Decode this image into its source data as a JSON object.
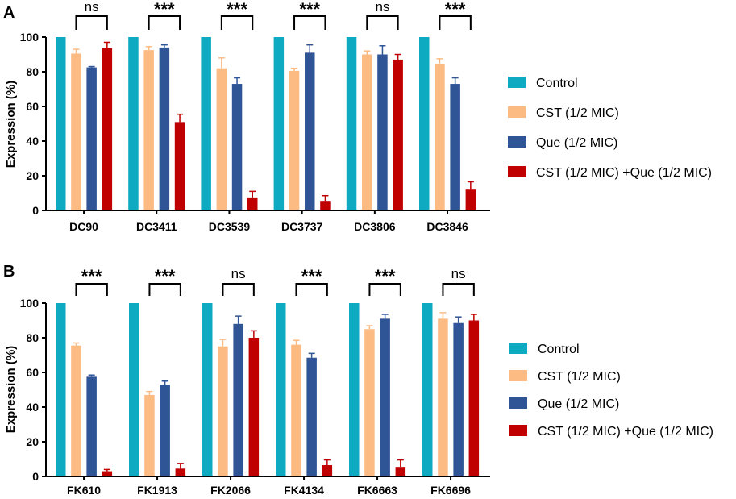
{
  "colors": {
    "Control": "#0eaac2",
    "CST (1/2 MIC)": "#fdbb84",
    "Que (1/2 MIC)": "#2f5597",
    "CST (1/2 MIC) +Que (1/2 MIC)": "#c00000"
  },
  "chart_data": [
    {
      "panel": "A",
      "type": "bar",
      "ylabel": "Expression (%)",
      "ylim": [
        0,
        100
      ],
      "yticks": [
        0,
        20,
        40,
        60,
        80,
        100
      ],
      "categories": [
        "DC90",
        "DC3411",
        "DC3539",
        "DC3737",
        "DC3806",
        "DC3846"
      ],
      "series": [
        {
          "name": "Control",
          "values": [
            100,
            100,
            100,
            100,
            100,
            100
          ],
          "errors": [
            0,
            0,
            0,
            0,
            0,
            0
          ]
        },
        {
          "name": "CST (1/2 MIC)",
          "values": [
            90.5,
            92.5,
            82,
            80.5,
            90,
            84.5
          ],
          "errors": [
            2.5,
            2,
            6,
            1.5,
            2,
            3
          ]
        },
        {
          "name": "Que (1/2 MIC)",
          "values": [
            82.5,
            94,
            73,
            91,
            90,
            73
          ],
          "errors": [
            0.5,
            1.5,
            3.5,
            4.5,
            5,
            3.5
          ]
        },
        {
          "name": "CST (1/2 MIC) +Que (1/2 MIC)",
          "values": [
            93.5,
            51,
            7.5,
            5.5,
            87,
            12
          ],
          "errors": [
            3.5,
            4.5,
            3.5,
            3,
            3,
            4.5
          ]
        }
      ],
      "significance": [
        "ns",
        "***",
        "***",
        "***",
        "ns",
        "***"
      ]
    },
    {
      "panel": "B",
      "type": "bar",
      "ylabel": "Expression (%)",
      "ylim": [
        0,
        100
      ],
      "yticks": [
        0,
        20,
        40,
        60,
        80,
        100
      ],
      "categories": [
        "FK610",
        "FK1913",
        "FK2066",
        "FK4134",
        "FK6663",
        "FK6696"
      ],
      "series": [
        {
          "name": "Control",
          "values": [
            100,
            100,
            100,
            100,
            100,
            100
          ],
          "errors": [
            0,
            0,
            0,
            0,
            0,
            0
          ]
        },
        {
          "name": "CST (1/2 MIC)",
          "values": [
            75.5,
            47,
            75,
            76,
            85,
            91
          ],
          "errors": [
            1.5,
            2,
            4,
            2.5,
            2,
            3.5
          ]
        },
        {
          "name": "Que (1/2 MIC)",
          "values": [
            57.5,
            53,
            88,
            68.5,
            91,
            88.5
          ],
          "errors": [
            1,
            2,
            4.5,
            2.5,
            2.5,
            3.5
          ]
        },
        {
          "name": "CST (1/2 MIC) +Que (1/2 MIC)",
          "values": [
            3,
            4.5,
            80,
            6.5,
            5.5,
            90
          ],
          "errors": [
            1,
            3,
            4,
            3,
            4,
            3.5
          ]
        }
      ],
      "significance": [
        "***",
        "***",
        "ns",
        "***",
        "***",
        "ns"
      ]
    }
  ]
}
